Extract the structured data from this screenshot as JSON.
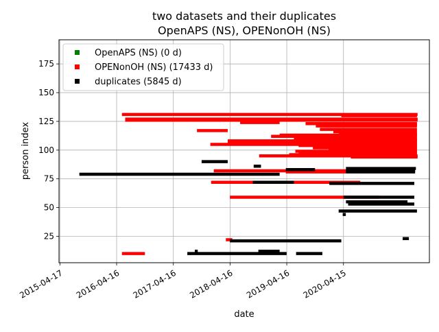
{
  "chart_data": {
    "type": "scatter",
    "title_line1": "two datasets and their duplicates",
    "title_line2": "OpenAPS (NS), OPENonOH (NS)",
    "xlabel": "date",
    "ylabel": "person index",
    "xlim": [
      "2015-04-11",
      "2021-10-20"
    ],
    "ylim": [
      2,
      196
    ],
    "x_ticks": [
      "2015-04-17",
      "2016-04-16",
      "2017-04-16",
      "2018-04-16",
      "2019-04-16",
      "2020-04-15"
    ],
    "y_ticks": [
      25,
      50,
      75,
      100,
      125,
      150,
      175
    ],
    "grid": true,
    "legend_position": "top-left",
    "colors": {
      "openaps": "#008000",
      "openonoh": "#ff0000",
      "duplicates": "#000000"
    },
    "series": [
      {
        "name": "OpenAPS (NS) (0 d)",
        "color": "#008000",
        "segments": []
      },
      {
        "name": "OPENonOH (NS) (17433 d)",
        "color": "#ff0000",
        "segments": [
          {
            "y": 131,
            "start": "2016-05-20",
            "end": "2021-08-05"
          },
          {
            "y": 130,
            "start": "2020-04-01",
            "end": "2021-08-01"
          },
          {
            "y": 127,
            "start": "2016-06-10",
            "end": "2021-08-05"
          },
          {
            "y": 126,
            "start": "2016-06-10",
            "end": "2021-08-05"
          },
          {
            "y": 124,
            "start": "2018-06-20",
            "end": "2019-03-01"
          },
          {
            "y": 123,
            "start": "2019-08-15",
            "end": "2021-08-01"
          },
          {
            "y": 122,
            "start": "2020-01-10",
            "end": "2021-08-01"
          },
          {
            "y": 121,
            "start": "2019-10-20",
            "end": "2021-08-01"
          },
          {
            "y": 118,
            "start": "2019-11-15",
            "end": "2021-08-01"
          },
          {
            "y": 117,
            "start": "2017-09-15",
            "end": "2018-04-01"
          },
          {
            "y": 116,
            "start": "2020-02-10",
            "end": "2021-08-01"
          },
          {
            "y": 114,
            "start": "2020-03-15",
            "end": "2021-08-01"
          },
          {
            "y": 113,
            "start": "2019-03-01",
            "end": "2021-08-01"
          },
          {
            "y": 112,
            "start": "2019-01-05",
            "end": "2021-08-01"
          },
          {
            "y": 110,
            "start": "2019-06-01",
            "end": "2021-08-01"
          },
          {
            "y": 109,
            "start": "2019-11-01",
            "end": "2021-08-01"
          },
          {
            "y": 108,
            "start": "2018-04-01",
            "end": "2021-08-01"
          },
          {
            "y": 106,
            "start": "2018-04-01",
            "end": "2021-08-01"
          },
          {
            "y": 105,
            "start": "2017-12-10",
            "end": "2021-08-01"
          },
          {
            "y": 104,
            "start": "2019-07-01",
            "end": "2021-08-01"
          },
          {
            "y": 102,
            "start": "2019-10-01",
            "end": "2021-08-01"
          },
          {
            "y": 101,
            "start": "2020-01-10",
            "end": "2021-08-01"
          },
          {
            "y": 99,
            "start": "2019-06-10",
            "end": "2021-08-01"
          },
          {
            "y": 98,
            "start": "2019-07-01",
            "end": "2021-08-01"
          },
          {
            "y": 96,
            "start": "2019-05-01",
            "end": "2021-08-01"
          },
          {
            "y": 95,
            "start": "2018-10-20",
            "end": "2021-08-05"
          },
          {
            "y": 94,
            "start": "2020-06-01",
            "end": "2021-08-05"
          },
          {
            "y": 82,
            "start": "2018-01-01",
            "end": "2021-01-15"
          },
          {
            "y": 81,
            "start": "2019-04-10",
            "end": "2020-05-01"
          },
          {
            "y": 72,
            "start": "2017-12-15",
            "end": "2020-08-01"
          },
          {
            "y": 59,
            "start": "2018-04-15",
            "end": "2020-12-01"
          },
          {
            "y": 22,
            "start": "2018-03-20",
            "end": "2018-05-01"
          },
          {
            "y": 10,
            "start": "2016-05-20",
            "end": "2016-10-15"
          }
        ]
      },
      {
        "name": "duplicates (5845 d)",
        "color": "#000000",
        "segments": [
          {
            "y": 84,
            "start": "2020-05-01",
            "end": "2021-07-25"
          },
          {
            "y": 83,
            "start": "2019-04-10",
            "end": "2019-10-15"
          },
          {
            "y": 82,
            "start": "2020-05-01",
            "end": "2021-07-20"
          },
          {
            "y": 81,
            "start": "2020-05-01",
            "end": "2021-07-20"
          },
          {
            "y": 90,
            "start": "2017-10-15",
            "end": "2018-04-01"
          },
          {
            "y": 86,
            "start": "2018-09-15",
            "end": "2018-11-01"
          },
          {
            "y": 79,
            "start": "2015-08-20",
            "end": "2019-03-01"
          },
          {
            "y": 72,
            "start": "2018-09-10",
            "end": "2019-06-01"
          },
          {
            "y": 71,
            "start": "2020-01-15",
            "end": "2021-07-15"
          },
          {
            "y": 59,
            "start": "2020-04-15",
            "end": "2021-07-15"
          },
          {
            "y": 55,
            "start": "2020-05-01",
            "end": "2021-06-01"
          },
          {
            "y": 53,
            "start": "2020-05-15",
            "end": "2021-07-15"
          },
          {
            "y": 47,
            "start": "2020-03-15",
            "end": "2021-08-01"
          },
          {
            "y": 44,
            "start": "2020-04-10",
            "end": "2020-04-30"
          },
          {
            "y": 23,
            "start": "2021-05-01",
            "end": "2021-06-10"
          },
          {
            "y": 21,
            "start": "2018-04-15",
            "end": "2020-04-01"
          },
          {
            "y": 12,
            "start": "2018-10-15",
            "end": "2019-03-01"
          },
          {
            "y": 10,
            "start": "2017-07-15",
            "end": "2019-04-15"
          },
          {
            "y": 10,
            "start": "2019-06-15",
            "end": "2019-12-01"
          },
          {
            "y": 12,
            "start": "2017-09-01",
            "end": "2017-09-20"
          }
        ]
      }
    ]
  }
}
